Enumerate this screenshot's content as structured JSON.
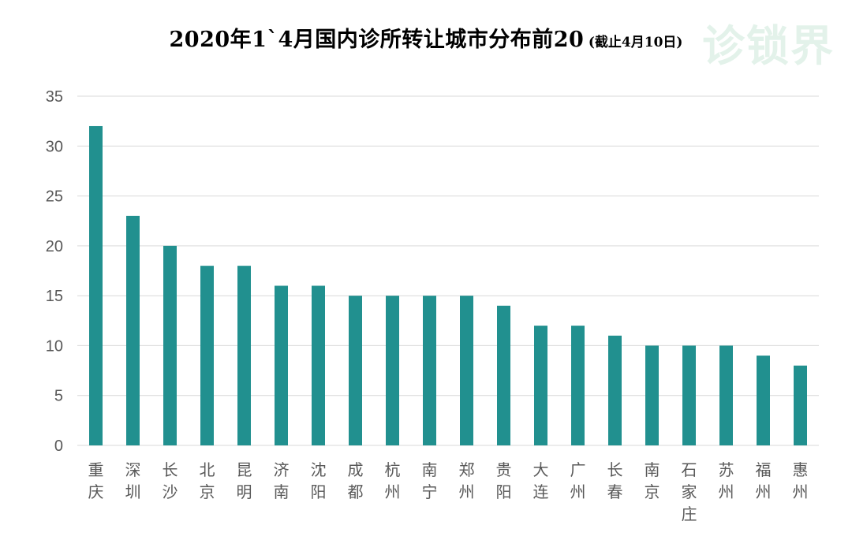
{
  "header": {
    "title": "2020年1`4月国内诊所转让城市分布前20",
    "subtitle": "(截止4月10日)"
  },
  "watermark": {
    "text": "诊锁界"
  },
  "chart_data": {
    "type": "bar",
    "title": "2020年1`4月国内诊所转让城市分布前20",
    "subtitle": "(截止4月10日)",
    "categories": [
      "重庆",
      "深圳",
      "长沙",
      "北京",
      "昆明",
      "济南",
      "沈阳",
      "成都",
      "杭州",
      "南宁",
      "郑州",
      "贵阳",
      "大连",
      "广州",
      "长春",
      "南京",
      "石家庄",
      "苏州",
      "福州",
      "惠州"
    ],
    "values": [
      32,
      23,
      20,
      18,
      18,
      16,
      16,
      15,
      15,
      15,
      15,
      14,
      12,
      12,
      11,
      10,
      10,
      10,
      9,
      8
    ],
    "ylim": [
      0,
      35
    ],
    "yticks": [
      0,
      5,
      10,
      15,
      20,
      25,
      30,
      35
    ],
    "xlabel": "",
    "ylabel": "",
    "grid": true,
    "bar_color": "#21908f",
    "grid_color": "#d9d9d9"
  }
}
